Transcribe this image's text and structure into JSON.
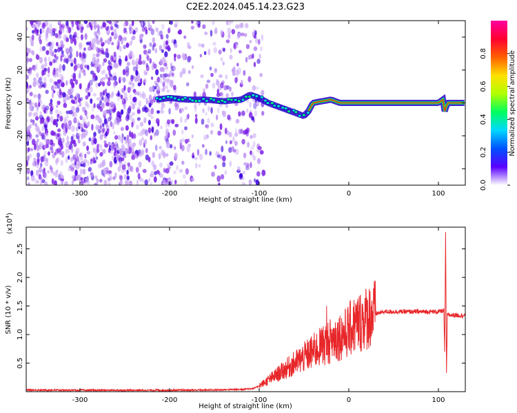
{
  "title": "C2E2.2024.045.14.23.G23",
  "colors": {
    "snr_line": "#e8272a",
    "scatter_low": "#c9a6f5",
    "scatter_mid": "#7a1fe6",
    "scatter_high": "#3a00e0",
    "axis": "#000000"
  },
  "chart_data": [
    {
      "type": "heatmap",
      "title": "C2E2.2024.045.14.23.G23",
      "xlabel": "Height of straight line (km)",
      "ylabel": "Frequency (Hz)",
      "xlim": [
        -360,
        130
      ],
      "ylim": [
        -50,
        50
      ],
      "x_ticks": [
        -300,
        -200,
        -100,
        0,
        100
      ],
      "x_tick_labels": [
        "-300",
        "-200",
        "-100",
        "0",
        "100"
      ],
      "y_ticks": [
        -40,
        -20,
        0,
        20,
        40
      ],
      "y_tick_labels": [
        "-40",
        "-20",
        "0",
        "20",
        "40"
      ],
      "colorbar": {
        "label": "Normalized spectral amplitude",
        "range": [
          0.0,
          1.0
        ],
        "ticks": [
          0.0,
          0.2,
          0.4,
          0.6,
          0.8
        ],
        "tick_labels": [
          "0.0",
          "0.2",
          "0.4",
          "0.6",
          "0.8"
        ],
        "colormap": [
          "#ffffff",
          "#5a00ff",
          "#0050ff",
          "#00d8ff",
          "#00ff60",
          "#b0ff00",
          "#ffe000",
          "#ff6000",
          "#ff0030",
          "#ff00a0"
        ]
      },
      "signal_track": {
        "height_km": [
          -215,
          -200,
          -180,
          -160,
          -140,
          -120,
          -110,
          -100,
          -90,
          -80,
          -70,
          -60,
          -50,
          -45,
          -40,
          -30,
          -20,
          -10,
          0,
          50,
          100,
          105,
          107,
          110,
          130
        ],
        "frequency_hz": [
          2,
          3,
          2,
          2,
          1,
          2,
          5,
          3,
          0,
          -2,
          -4,
          -6,
          -8,
          -5,
          0,
          1,
          2,
          0,
          0,
          0,
          0,
          2,
          -5,
          0,
          0
        ]
      },
      "grid": false
    },
    {
      "type": "line",
      "title": "",
      "xlabel": "Height of straight line (km)",
      "ylabel": "SNR (10 * v/v)",
      "y_multiplier_label": "(x10",
      "y_multiplier_exp": "4",
      "xlim": [
        -360,
        130
      ],
      "ylim": [
        0,
        28800
      ],
      "x_ticks": [
        -300,
        -200,
        -100,
        0,
        100
      ],
      "x_tick_labels": [
        "-300",
        "-200",
        "-100",
        "0",
        "100"
      ],
      "y_ticks": [
        5000,
        10000,
        15000,
        20000,
        25000
      ],
      "y_tick_labels": [
        "0.5",
        "1.0",
        "1.5",
        "2.0",
        "2.5"
      ],
      "series": [
        {
          "x": [
            -360,
            -300,
            -200,
            -150,
            -120,
            -105,
            -95,
            -85,
            -75,
            -65,
            -55,
            -45,
            -35,
            -25,
            -15,
            -5,
            5,
            15,
            25,
            40,
            60,
            80,
            100,
            106,
            107,
            108,
            109,
            110,
            112,
            120,
            130
          ],
          "y": [
            300,
            250,
            250,
            300,
            400,
            600,
            1500,
            2500,
            3500,
            4500,
            5500,
            6500,
            7500,
            8500,
            9500,
            10000,
            11500,
            12500,
            13500,
            14000,
            14000,
            14000,
            14000,
            14200,
            7000,
            28000,
            3000,
            13500,
            13400,
            13400,
            13300
          ]
        }
      ],
      "grid": false
    }
  ]
}
